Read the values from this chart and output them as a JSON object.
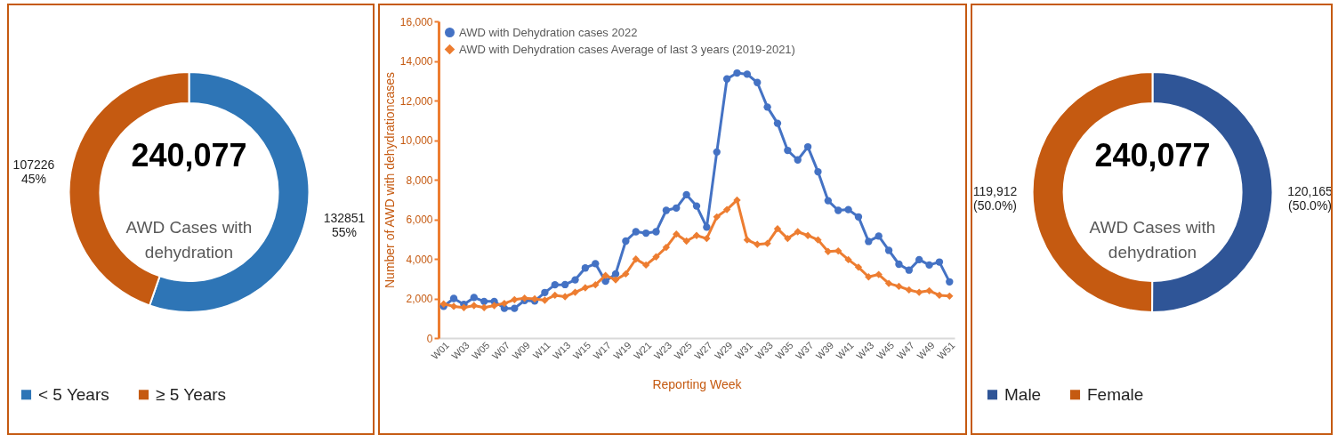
{
  "chart_data": [
    {
      "type": "donut",
      "categories": [
        "< 5 Years",
        "≥ 5 Years"
      ],
      "values": [
        132851,
        107226
      ],
      "colors": [
        "#2e75b6",
        "#c55a11"
      ],
      "value_labels": [
        "132851\n55%",
        "107226\n45%"
      ],
      "annotations": [
        "240,077",
        "AWD Cases with\ndehydration"
      ],
      "legend": "bottom"
    },
    {
      "type": "line",
      "xlabel": "Reporting Week",
      "ylabel": "Number of AWD with dehydrationcases",
      "categories": [
        "W01",
        null,
        "W03",
        null,
        "W05",
        null,
        "W07",
        null,
        "W09",
        null,
        "W11",
        null,
        "W13",
        null,
        "W15",
        null,
        "W17",
        null,
        "W19",
        null,
        "W21",
        null,
        "W23",
        null,
        "W25",
        null,
        "W27",
        null,
        "W29",
        null,
        "W31",
        null,
        "W33",
        null,
        "W35",
        null,
        "W37",
        null,
        "W39",
        null,
        "W41",
        null,
        "W43",
        null,
        "W45",
        null,
        "W47",
        null,
        "W49",
        null,
        "W51"
      ],
      "ylim": [
        0,
        16000
      ],
      "yticks": [
        0,
        {
          "value": 2000,
          "label": "2,000"
        },
        {
          "value": 4000,
          "label": "4,000"
        },
        {
          "value": 6000,
          "label": "6,000"
        },
        {
          "value": 8000,
          "label": "8,000"
        },
        {
          "value": 10000,
          "label": "10,000"
        },
        {
          "value": 12000,
          "label": "12,000"
        },
        {
          "value": 14000,
          "label": "14,000"
        },
        {
          "value": 16000,
          "label": "16,000"
        }
      ],
      "legend": "top left",
      "series": [
        {
          "name": "AWD with Dehydration cases 2022",
          "color": "#4472c4",
          "marker": "circle",
          "values": [
            1600,
            2000,
            1700,
            2050,
            1850,
            1850,
            1500,
            1500,
            1900,
            1870,
            2300,
            2690,
            2700,
            2940,
            3540,
            3760,
            2870,
            3240,
            4900,
            5370,
            5300,
            5370,
            6450,
            6570,
            7240,
            6670,
            5600,
            9400,
            13090,
            13390,
            13330,
            12910,
            11670,
            10850,
            9480,
            9000,
            9660,
            8400,
            6940,
            6450,
            6490,
            6120,
            4880,
            5150,
            4430,
            3730,
            3430,
            3960,
            3690,
            3840,
            2840
          ]
        },
        {
          "name": "AWD with Dehydration cases Average of last 3 years (2019-2021)",
          "color": "#ed7d31",
          "marker": "diamond",
          "values": [
            1720,
            1600,
            1540,
            1640,
            1540,
            1640,
            1750,
            1940,
            2010,
            1980,
            1910,
            2160,
            2090,
            2310,
            2540,
            2690,
            3160,
            2940,
            3240,
            3990,
            3690,
            4100,
            4580,
            5250,
            4900,
            5180,
            5030,
            6120,
            6490,
            6970,
            4960,
            4730,
            4780,
            5520,
            5030,
            5370,
            5180,
            4960,
            4370,
            4400,
            3960,
            3580,
            3090,
            3210,
            2760,
            2610,
            2430,
            2310,
            2390,
            2160,
            2120
          ]
        }
      ]
    },
    {
      "type": "donut",
      "categories": [
        "Male",
        "Female"
      ],
      "values": [
        120165,
        119912
      ],
      "colors": [
        "#2f5597",
        "#c55a11"
      ],
      "value_labels": [
        "120,165\n(50.0%)",
        "119,912\n(50.0%)"
      ],
      "annotations": [
        "240,077",
        "AWD Cases with\ndehydration"
      ],
      "legend": "bottom"
    }
  ]
}
